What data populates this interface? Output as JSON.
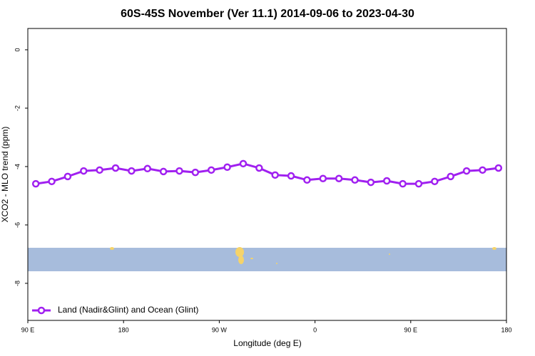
{
  "chart_data": {
    "type": "line",
    "title": "60S-45S November (Ver 11.1)   2014-09-06 to 2023-04-30",
    "xlabel": "Longitude (deg E)",
    "ylabel": "XCO2 - MLO trend (ppm)",
    "x": [
      97.5,
      112.5,
      127.5,
      142.5,
      157.5,
      172.5,
      187.5,
      202.5,
      217.5,
      232.5,
      247.5,
      262.5,
      277.5,
      292.5,
      307.5,
      322.5,
      337.5,
      352.5,
      367.5,
      382.5,
      397.5,
      412.5,
      427.5,
      442.5,
      457.5,
      472.5,
      487.5,
      502.5,
      517.5,
      532.5
    ],
    "series": [
      {
        "name": "Land (Nadir&Glint) and Ocean (Glint)",
        "color": "#a020f0",
        "values": [
          -4.59,
          -4.51,
          -4.34,
          -4.15,
          -4.12,
          -4.05,
          -4.15,
          -4.07,
          -4.17,
          -4.15,
          -4.2,
          -4.12,
          -4.02,
          -3.9,
          -4.05,
          -4.29,
          -4.32,
          -4.46,
          -4.41,
          -4.41,
          -4.46,
          -4.54,
          -4.49,
          -4.59,
          -4.59,
          -4.51,
          -4.34,
          -4.15,
          -4.12,
          -4.05
        ]
      }
    ],
    "xlim": [
      90,
      540
    ],
    "xticks": [
      {
        "value": 90,
        "label": "90 E"
      },
      180,
      {
        "value": 270,
        "label": "90 W"
      },
      {
        "value": 360,
        "label": "0"
      },
      {
        "value": 450,
        "label": "90 E"
      },
      {
        "value": 540,
        "label": "180"
      }
    ],
    "ylim": [
      -9.27,
      0.73
    ],
    "yticks": [
      0,
      -2,
      -4,
      -6,
      -8
    ],
    "legend": "bottomleft"
  }
}
